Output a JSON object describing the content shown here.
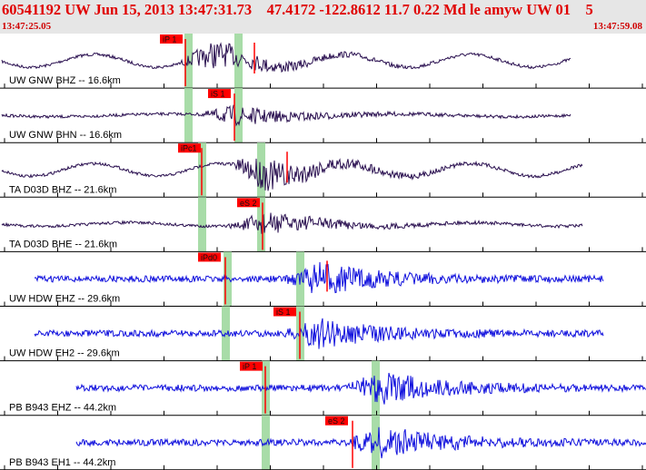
{
  "header": {
    "title": "60541192 UW Jun 15, 2013 13:47:31.73    47.4172 -122.8612 11.7 0.22 Md le amyw UW 01    5",
    "time_start": "13:47:25.05",
    "time_end": "13:47:59.08"
  },
  "colors": {
    "header_text": "#e00000",
    "trace_broadband": "#2a1050",
    "trace_short": "#1010dd",
    "pick_label_bg": "#ff0000",
    "theoretical_band": "#a8dca8"
  },
  "panels": [
    {
      "label": "UW GNW BHZ -- 16.6km",
      "pick": "iP 1",
      "color": "dark",
      "kind": "lowfreq"
    },
    {
      "label": "UW GNW BHN -- 16.6km",
      "pick": "iS 1",
      "color": "dark",
      "kind": "calm"
    },
    {
      "label": "TA D03D BHZ -- 21.6km",
      "pick": "iPc1",
      "color": "dark",
      "kind": "lowfreq"
    },
    {
      "label": "TA D03D BHE -- 21.6km",
      "pick": "eS 2",
      "color": "dark",
      "kind": "noisy"
    },
    {
      "label": "UW HDW EHZ -- 29.6km",
      "pick": "iPd0",
      "color": "blue",
      "kind": "hf"
    },
    {
      "label": "UW HDW EH2 -- 29.6km",
      "pick": "iS 1",
      "color": "blue",
      "kind": "hf"
    },
    {
      "label": "PB B943 EHZ -- 44.2km",
      "pick": "iP 1",
      "color": "blue",
      "kind": "hf"
    },
    {
      "label": "PB B943 EH1 -- 44.2km",
      "pick": "eS 2",
      "color": "blue",
      "kind": "hf"
    }
  ]
}
